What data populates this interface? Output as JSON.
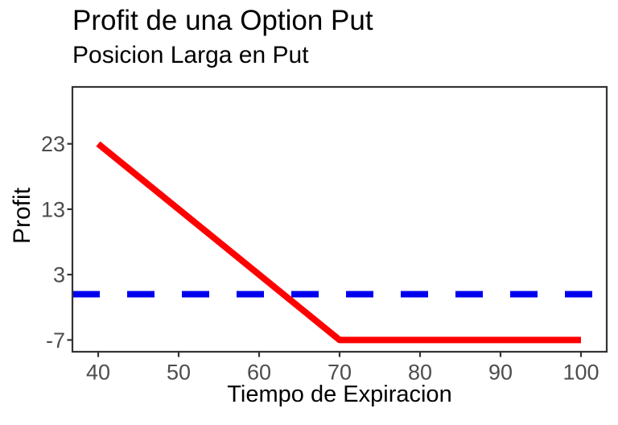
{
  "chart_data": {
    "type": "line",
    "title": "Profit de una Option Put",
    "subtitle": "Posicion Larga en Put",
    "xlabel": "Tiempo de Expiracion",
    "ylabel": "Profit",
    "x_ticks": [
      40,
      50,
      60,
      70,
      80,
      90,
      100
    ],
    "y_ticks": [
      23,
      13,
      3,
      -7
    ],
    "xlim": [
      36.8,
      103.2
    ],
    "ylim": [
      -8.8,
      31.7
    ],
    "grid": false,
    "legend": "none",
    "series": [
      {
        "name": "breakeven-zero-line",
        "kind": "hline",
        "y": 0,
        "color": "#0000ee",
        "dash": "dashed",
        "width": 8
      },
      {
        "name": "long-put-profit",
        "kind": "line",
        "points": [
          [
            40,
            23
          ],
          [
            70,
            -7
          ],
          [
            100,
            -7
          ]
        ],
        "color": "#ff0000",
        "dash": "solid",
        "width": 8
      }
    ],
    "colors": {
      "axis_line": "#333333",
      "axis_text": "#4d4d4d",
      "title_text": "#000000",
      "background": "#ffffff"
    }
  }
}
